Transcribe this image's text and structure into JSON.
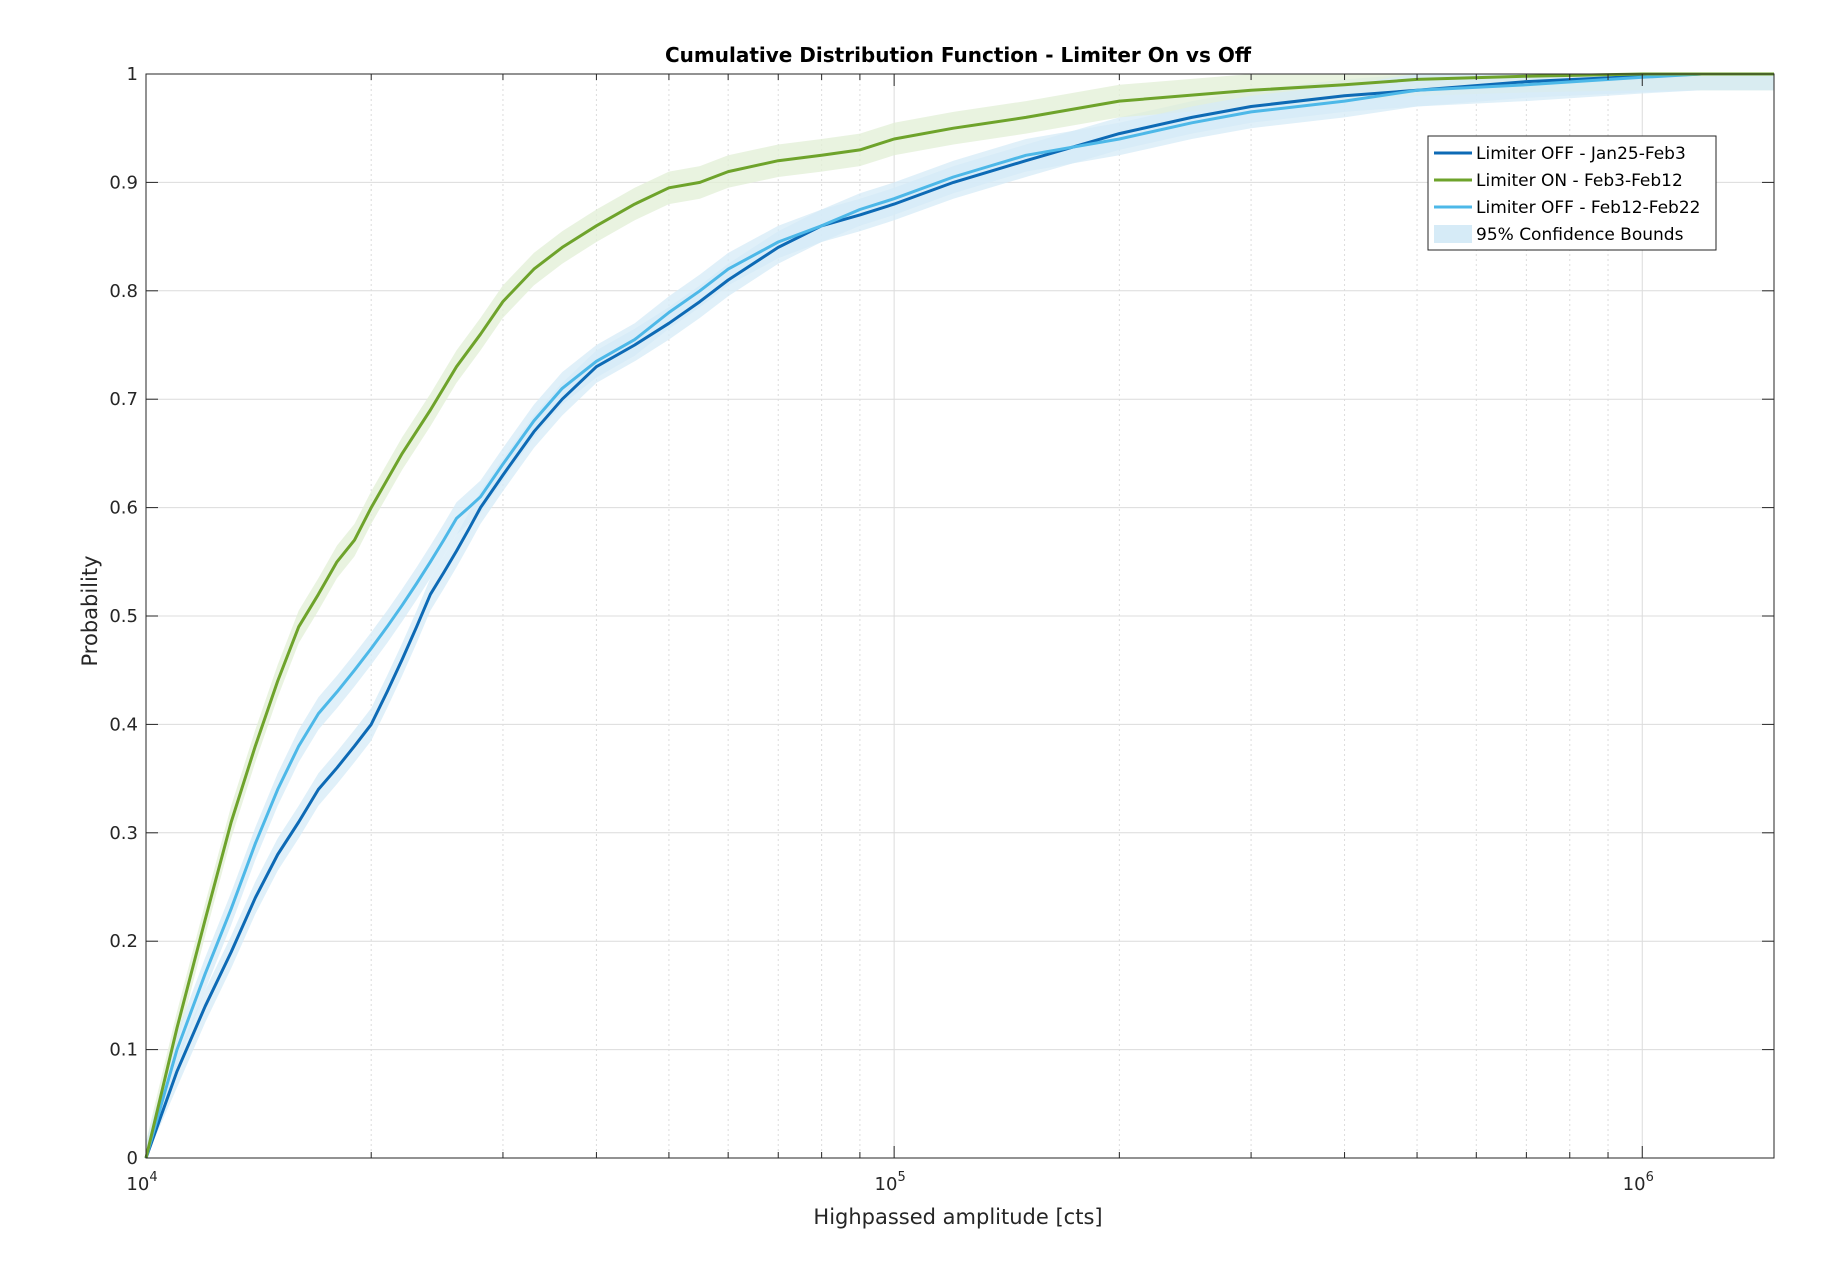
{
  "chart_data": {
    "type": "line",
    "title": "Cumulative Distribution Function - Limiter On vs Off",
    "xlabel": "Highpassed amplitude [cts]",
    "ylabel": "Probability",
    "xscale": "log",
    "xlim": [
      10000,
      1500000
    ],
    "ylim": [
      0,
      1
    ],
    "xticks": [
      {
        "value": 10000,
        "base": "10",
        "exp": "4"
      },
      {
        "value": 100000,
        "base": "10",
        "exp": "5"
      },
      {
        "value": 1000000,
        "base": "10",
        "exp": "6"
      }
    ],
    "yticks": [
      "0",
      "0.1",
      "0.2",
      "0.3",
      "0.4",
      "0.5",
      "0.6",
      "0.7",
      "0.8",
      "0.9",
      "1"
    ],
    "grid": true,
    "minor_grid": true,
    "legend_position": "top-right",
    "series": [
      {
        "name": "Limiter OFF - Jan25-Feb3",
        "color": "#0d6ab5",
        "x": [
          10000,
          11000,
          12000,
          13000,
          14000,
          15000,
          16000,
          17000,
          18000,
          19000,
          20000,
          21000,
          22000,
          23000,
          24000,
          25000,
          26000,
          27000,
          28000,
          30000,
          33000,
          36000,
          40000,
          45000,
          50000,
          55000,
          60000,
          70000,
          80000,
          90000,
          100000,
          120000,
          150000,
          200000,
          250000,
          300000,
          400000,
          500000,
          700000,
          1000000,
          1200000,
          1500000
        ],
        "y": [
          0,
          0.08,
          0.14,
          0.19,
          0.24,
          0.28,
          0.31,
          0.34,
          0.36,
          0.38,
          0.4,
          0.43,
          0.46,
          0.49,
          0.52,
          0.54,
          0.56,
          0.58,
          0.6,
          0.63,
          0.67,
          0.7,
          0.73,
          0.75,
          0.77,
          0.79,
          0.81,
          0.84,
          0.86,
          0.87,
          0.88,
          0.9,
          0.92,
          0.945,
          0.96,
          0.97,
          0.98,
          0.985,
          0.993,
          0.998,
          1.0,
          1.0
        ]
      },
      {
        "name": "Limiter ON - Feb3-Feb12",
        "color": "#6ea32b",
        "x": [
          10000,
          11000,
          12000,
          13000,
          14000,
          15000,
          16000,
          17000,
          18000,
          19000,
          20000,
          22000,
          24000,
          26000,
          28000,
          30000,
          33000,
          36000,
          40000,
          45000,
          50000,
          55000,
          60000,
          70000,
          80000,
          90000,
          100000,
          120000,
          150000,
          200000,
          300000,
          400000,
          500000,
          700000,
          1000000,
          1500000
        ],
        "y": [
          0,
          0.12,
          0.22,
          0.31,
          0.38,
          0.44,
          0.49,
          0.52,
          0.55,
          0.57,
          0.6,
          0.65,
          0.69,
          0.73,
          0.76,
          0.79,
          0.82,
          0.84,
          0.86,
          0.88,
          0.895,
          0.9,
          0.91,
          0.92,
          0.925,
          0.93,
          0.94,
          0.95,
          0.96,
          0.975,
          0.985,
          0.99,
          0.995,
          0.998,
          1.0,
          1.0
        ]
      },
      {
        "name": "Limiter OFF - Feb12-Feb22",
        "color": "#4db8e8",
        "x": [
          10000,
          11000,
          12000,
          13000,
          14000,
          15000,
          16000,
          17000,
          18000,
          19000,
          20000,
          21000,
          22000,
          23000,
          24000,
          25000,
          26000,
          27000,
          28000,
          30000,
          33000,
          36000,
          40000,
          45000,
          50000,
          55000,
          60000,
          70000,
          80000,
          90000,
          100000,
          120000,
          150000,
          200000,
          250000,
          300000,
          400000,
          500000,
          700000,
          1000000,
          1200000,
          1500000
        ],
        "y": [
          0,
          0.1,
          0.17,
          0.23,
          0.29,
          0.34,
          0.38,
          0.41,
          0.43,
          0.45,
          0.47,
          0.49,
          0.51,
          0.53,
          0.55,
          0.57,
          0.59,
          0.6,
          0.61,
          0.64,
          0.68,
          0.71,
          0.735,
          0.755,
          0.78,
          0.8,
          0.82,
          0.845,
          0.86,
          0.875,
          0.885,
          0.905,
          0.925,
          0.94,
          0.955,
          0.965,
          0.975,
          0.985,
          0.99,
          0.997,
          1.0,
          1.0
        ]
      }
    ],
    "confidence_band": {
      "name": "95% Confidence Bounds",
      "color": "#d6ebf7",
      "green_color": "#e2efd6",
      "halfwidth": 0.015
    }
  }
}
